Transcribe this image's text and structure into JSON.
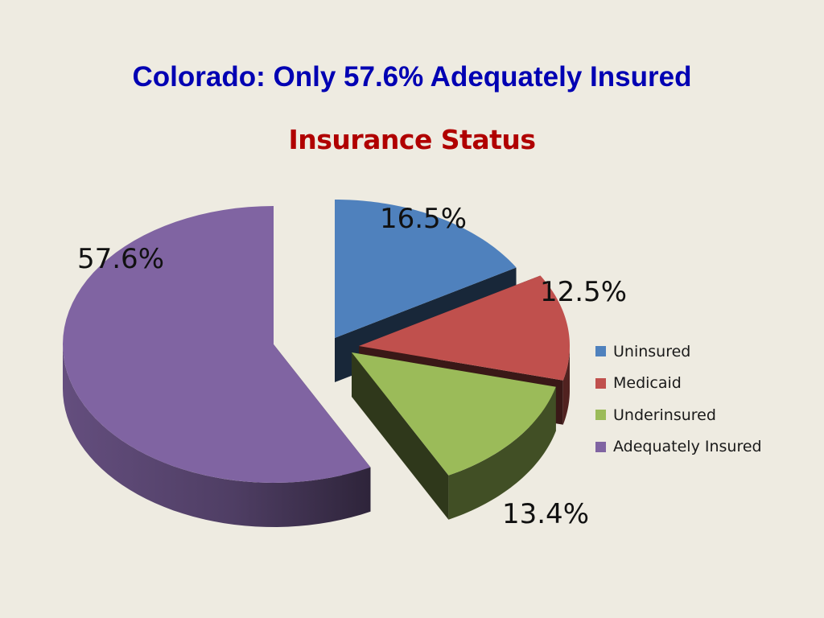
{
  "slide": {
    "title": "Colorado:  Only 57.6% Adequately Insured",
    "title_color": "#0000B3"
  },
  "chart_data": {
    "type": "pie",
    "title": "Insurance Status",
    "title_color": "#B00000",
    "three_d": true,
    "exploded": true,
    "legend_position": "right",
    "slices": [
      {
        "name": "Uninsured",
        "value": 16.5,
        "label": "16.5%",
        "color": "#4F81BD"
      },
      {
        "name": "Medicaid",
        "value": 12.5,
        "label": "12.5%",
        "color": "#C0504D"
      },
      {
        "name": "Underinsured",
        "value": 13.4,
        "label": "13.4%",
        "color": "#9BBB59"
      },
      {
        "name": "Adequately Insured",
        "value": 57.6,
        "label": "57.6%",
        "color": "#8064A2"
      }
    ]
  }
}
